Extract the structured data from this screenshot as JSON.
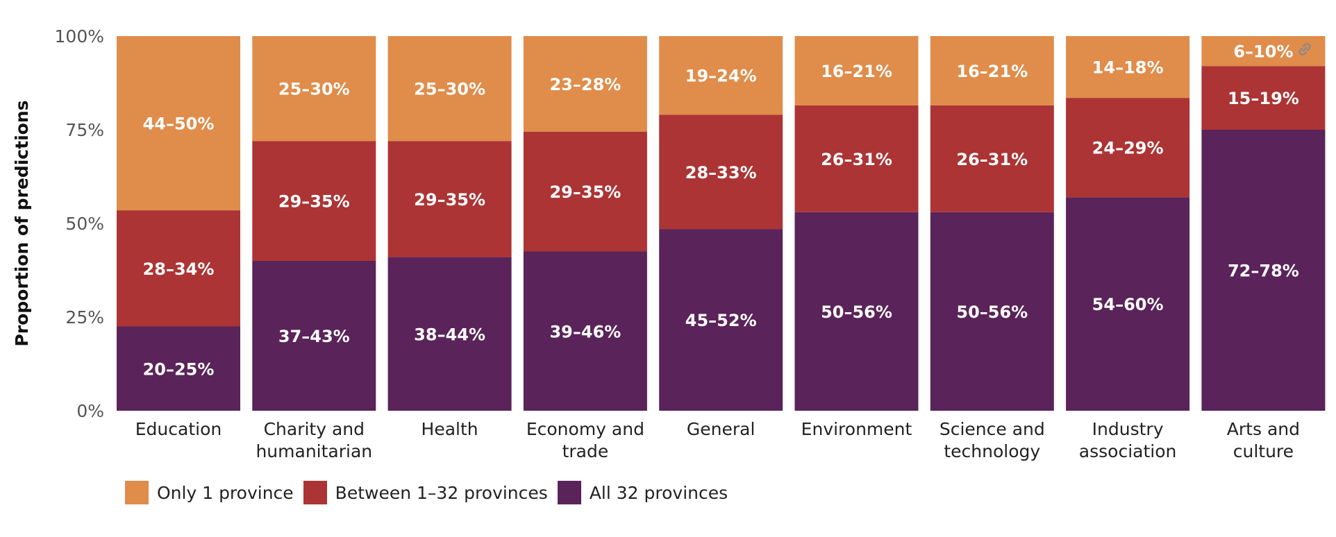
{
  "chart_data": {
    "type": "bar",
    "stacked": true,
    "ylabel": "Proportion of predictions",
    "xlabel": "",
    "ylim": [
      0,
      100
    ],
    "yticks": [
      "0%",
      "25%",
      "50%",
      "75%",
      "100%"
    ],
    "legend_position": "bottom-left",
    "categories": [
      [
        "Education"
      ],
      [
        "Charity and",
        "humanitarian"
      ],
      [
        "Health"
      ],
      [
        "Economy and",
        "trade"
      ],
      [
        "General"
      ],
      [
        "Environment"
      ],
      [
        "Science and",
        "technology"
      ],
      [
        "Industry",
        "association"
      ],
      [
        "Arts and",
        "culture"
      ]
    ],
    "series": [
      {
        "name": "All 32 provinces",
        "color": "#5a2359",
        "values": [
          22.5,
          40,
          41,
          42.5,
          48.5,
          53,
          53,
          57,
          75
        ],
        "labels": [
          "20–25%",
          "37–43%",
          "38–44%",
          "39–46%",
          "45–52%",
          "50–56%",
          "50–56%",
          "54–60%",
          "72–78%"
        ]
      },
      {
        "name": "Between 1–32 provinces",
        "color": "#ac3434",
        "values": [
          31,
          32,
          31,
          32,
          30.5,
          28.5,
          28.5,
          26.5,
          17
        ],
        "labels": [
          "28–34%",
          "29–35%",
          "29–35%",
          "29–35%",
          "28–33%",
          "26–31%",
          "26–31%",
          "24–29%",
          "15–19%"
        ]
      },
      {
        "name": "Only 1 province",
        "color": "#e08c4a",
        "values": [
          46.5,
          28,
          28,
          25.5,
          21,
          18.5,
          18.5,
          16.5,
          8
        ],
        "labels": [
          "44–50%",
          "25–30%",
          "25–30%",
          "23–28%",
          "19–24%",
          "16–21%",
          "16–21%",
          "14–18%",
          "6–10%"
        ]
      }
    ]
  },
  "legend": [
    {
      "label": "Only 1 province",
      "color": "#e08c4a"
    },
    {
      "label": "Between 1–32 provinces",
      "color": "#ac3434"
    },
    {
      "label": "All 32 provinces",
      "color": "#5a2359"
    }
  ],
  "link_icon": "link-icon"
}
